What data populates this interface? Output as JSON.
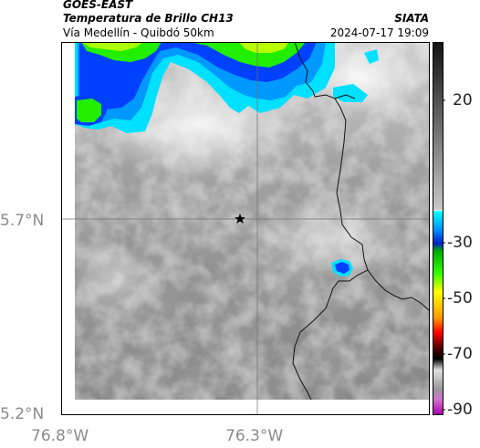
{
  "header": {
    "satellite": "GOES-EAST",
    "product": "Temperatura de Brillo CH13",
    "route": "Vía Medellín - Quibdó 50km",
    "source": "SIATA",
    "datetime": "2024-07-17 19:09"
  },
  "map": {
    "lat_labels": [
      "5.7°N",
      "5.2°N"
    ],
    "lon_labels": [
      "76.8°W",
      "76.3°W"
    ],
    "marker": "star-icon",
    "colors": {
      "gray_low": "#5a5a5a",
      "gray_high": "#f2f2f2",
      "cyan": "#00e5ff",
      "blue": "#0047ff",
      "green": "#22ee00",
      "border": "#111111",
      "grid": "#777777"
    }
  },
  "colorbar": {
    "ticks": [
      "20",
      "-30",
      "-50",
      "-70",
      "-90"
    ],
    "colors": [
      "#1a1a1a",
      "#bdbdbd",
      "#f5f5f5",
      "#00ffff",
      "#0033ff",
      "#00ff00",
      "#ffff00",
      "#ff7700",
      "#ff0000",
      "#000000",
      "#c0c0c0",
      "#cc00cc"
    ]
  }
}
